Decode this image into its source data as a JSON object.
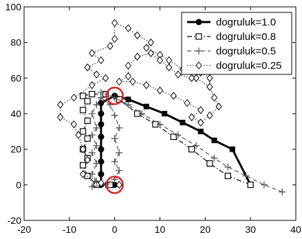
{
  "chart_data": {
    "type": "line",
    "title": "",
    "xlabel": "",
    "ylabel": "",
    "xlim": [
      -20,
      40
    ],
    "ylim": [
      -20,
      100
    ],
    "xticks": [
      -20,
      -10,
      0,
      10,
      20,
      30,
      40
    ],
    "yticks": [
      -20,
      0,
      20,
      40,
      60,
      80,
      100
    ],
    "grid": false,
    "legend_position": "top-right",
    "series": [
      {
        "name": "dogruluk=1.0",
        "style": "solid-thick",
        "marker": "filled-circle-and-square",
        "color": "#000000",
        "points": [
          [
            0,
            0
          ],
          [
            -3,
            0
          ],
          [
            -3,
            6
          ],
          [
            -3,
            13
          ],
          [
            -3,
            20
          ],
          [
            -3,
            27
          ],
          [
            -3,
            34
          ],
          [
            -3,
            40
          ],
          [
            -3,
            46
          ],
          [
            0,
            50
          ],
          [
            3,
            48
          ],
          [
            7,
            44
          ],
          [
            11,
            40
          ],
          [
            15,
            35
          ],
          [
            19,
            30
          ],
          [
            22,
            25
          ],
          [
            26,
            20
          ],
          [
            30,
            0
          ]
        ]
      },
      {
        "name": "dogruluk=0.8",
        "style": "dash-dot",
        "marker": "open-square",
        "color": "#000000",
        "points": [
          [
            30,
            0
          ],
          [
            25,
            5
          ],
          [
            21,
            12
          ],
          [
            17,
            20
          ],
          [
            13,
            27
          ],
          [
            9,
            34
          ],
          [
            5,
            40
          ],
          [
            1,
            48
          ],
          [
            -2,
            51
          ],
          [
            -5,
            51
          ],
          [
            -7,
            50
          ],
          [
            -6,
            47
          ],
          [
            -7,
            42
          ],
          [
            -6,
            36
          ],
          [
            -7,
            30
          ],
          [
            -6,
            26
          ],
          [
            -7,
            20
          ],
          [
            -6,
            15
          ],
          [
            -7,
            11
          ],
          [
            -6,
            5
          ],
          [
            -4,
            0
          ],
          [
            -1,
            0
          ]
        ]
      },
      {
        "name": "dogruluk=0.5",
        "style": "dashed",
        "marker": "plus",
        "color": "#555555",
        "points": [
          [
            37,
            -4
          ],
          [
            33,
            0
          ],
          [
            29,
            5
          ],
          [
            25,
            10
          ],
          [
            22,
            15
          ],
          [
            18,
            22
          ],
          [
            14,
            28
          ],
          [
            10,
            34
          ],
          [
            6,
            40
          ],
          [
            3,
            45
          ],
          [
            0,
            49
          ],
          [
            -3,
            52
          ],
          [
            -3,
            49
          ],
          [
            -1,
            45
          ],
          [
            0,
            39
          ],
          [
            1,
            32
          ],
          [
            0,
            26
          ],
          [
            1,
            18
          ],
          [
            0,
            13
          ],
          [
            1,
            8
          ],
          [
            0,
            3
          ],
          [
            -2,
            0
          ],
          [
            -5,
            -1
          ],
          [
            -4,
            2
          ],
          [
            -5,
            6
          ],
          [
            -4,
            12
          ],
          [
            -5,
            18
          ],
          [
            -4,
            22
          ],
          [
            -5,
            28
          ],
          [
            -4,
            32
          ],
          [
            -5,
            40
          ],
          [
            -4,
            45
          ],
          [
            -3,
            49
          ]
        ]
      },
      {
        "name": "dogruluk=0.25",
        "style": "dotted",
        "marker": "open-diamond",
        "color": "#000000",
        "points": [
          [
            1,
            0
          ],
          [
            -3,
            1
          ],
          [
            -7,
            6
          ],
          [
            -6,
            14
          ],
          [
            -7,
            20
          ],
          [
            -8,
            28
          ],
          [
            -9,
            34
          ],
          [
            -12,
            38
          ],
          [
            -12,
            45
          ],
          [
            -9,
            49
          ],
          [
            -5,
            56
          ],
          [
            -2,
            60
          ],
          [
            -4,
            62
          ],
          [
            -6,
            66
          ],
          [
            -3,
            70
          ],
          [
            -5,
            74
          ],
          [
            -1,
            78
          ],
          [
            0,
            82
          ],
          [
            0,
            91
          ],
          [
            3,
            88
          ],
          [
            5,
            84
          ],
          [
            8,
            80
          ],
          [
            7,
            77
          ],
          [
            10,
            73
          ],
          [
            12,
            70
          ],
          [
            15,
            65
          ],
          [
            18,
            60
          ],
          [
            21,
            55
          ],
          [
            22,
            49
          ],
          [
            23,
            44
          ],
          [
            21,
            39
          ],
          [
            19,
            35
          ],
          [
            17,
            38
          ],
          [
            19,
            42
          ],
          [
            16,
            46
          ],
          [
            13,
            50
          ],
          [
            10,
            53
          ],
          [
            7,
            56
          ],
          [
            4,
            58
          ],
          [
            1,
            58
          ],
          [
            3,
            61
          ],
          [
            3,
            67
          ],
          [
            5,
            72
          ],
          [
            8,
            74
          ],
          [
            10,
            70
          ],
          [
            12,
            66
          ],
          [
            14,
            62
          ],
          [
            17,
            60
          ],
          [
            19,
            63
          ],
          [
            21,
            60
          ],
          [
            21,
            55
          ]
        ]
      }
    ],
    "annotations": [
      {
        "type": "red-circle",
        "center": [
          0,
          50
        ],
        "label": ""
      },
      {
        "type": "red-circle",
        "center": [
          0,
          0
        ],
        "label": ""
      }
    ]
  }
}
